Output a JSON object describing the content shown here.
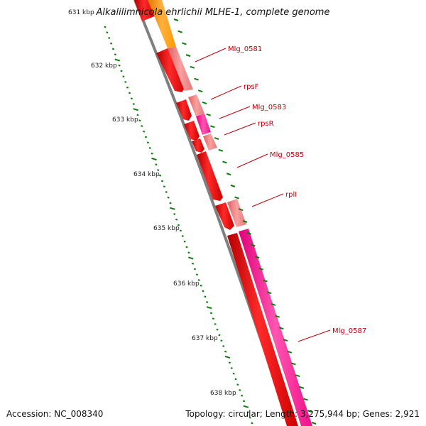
{
  "title": "Alkalilimnicola ehrlichii MLHE-1, complete genome",
  "footer": {
    "accession": "Accession: NC_008340",
    "summary": "Topology: circular; Length: 3,275,944 bp; Genes: 2,921"
  },
  "kbp_labels": [
    "631 kbp",
    "632 kbp",
    "633 kbp",
    "634 kbp",
    "635 kbp",
    "636 kbp",
    "637 kbp",
    "638 kbp"
  ],
  "gene_labels": [
    "Mlg_0581",
    "rpsF",
    "Mlg_0583",
    "rpsR",
    "Mlg_0585",
    "rplI",
    "Mlg_0587"
  ],
  "colors": {
    "backbone": "#7f7f7f",
    "cds_red": "#ff0000",
    "rrna_pink": "#f08080",
    "trna_magenta": "#ff1493",
    "orange": "#ff9900",
    "tick_green": "#0a7d0a",
    "label_red": "#c0000b"
  }
}
